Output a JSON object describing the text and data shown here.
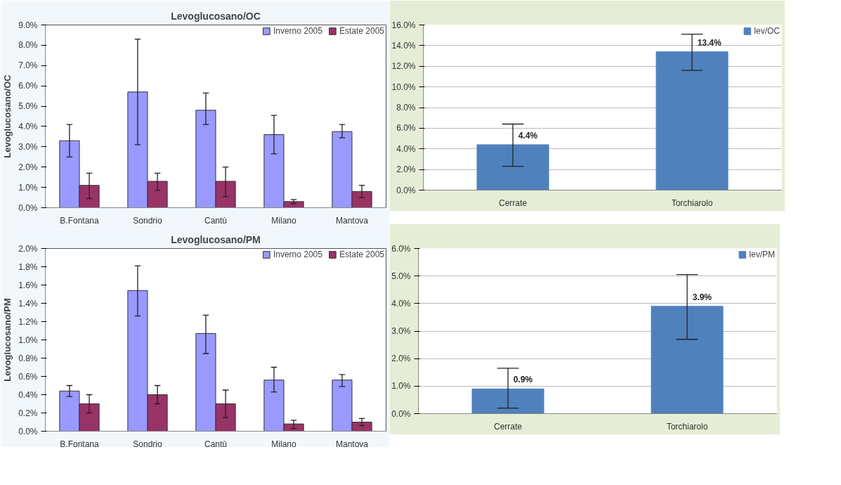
{
  "chart_data": [
    {
      "type": "bar",
      "title": "Levoglucosano/OC",
      "ylabel": "Levoglucosano/OC",
      "categories": [
        "B.Fontana",
        "Sondrio",
        "Cantù",
        "Milano",
        "Mantova"
      ],
      "legend": "top right",
      "grid": false,
      "series": [
        {
          "name": "Inverno 2005",
          "color": "#9999ff",
          "values": [
            3.3,
            5.7,
            4.8,
            3.6,
            3.75
          ],
          "errors": [
            [
              2.5,
              4.1
            ],
            [
              3.1,
              8.3
            ],
            [
              4.1,
              5.65
            ],
            [
              2.65,
              4.55
            ],
            [
              3.45,
              4.1
            ]
          ]
        },
        {
          "name": "Estate 2005",
          "color": "#993366",
          "values": [
            1.1,
            1.3,
            1.3,
            0.3,
            0.8
          ],
          "errors": [
            [
              0.45,
              1.7
            ],
            [
              0.85,
              1.7
            ],
            [
              0.55,
              2.0
            ],
            [
              0.2,
              0.4
            ],
            [
              0.5,
              1.1
            ]
          ]
        }
      ],
      "ylim": [
        0,
        9
      ],
      "yticks": [
        {
          "value": 0,
          "label": "0.0%"
        },
        {
          "value": 1,
          "label": "1.0%"
        },
        {
          "value": 2,
          "label": "2.0%"
        },
        {
          "value": 3,
          "label": "3.0%"
        },
        {
          "value": 4,
          "label": "4.0%"
        },
        {
          "value": 5,
          "label": "5.0%"
        },
        {
          "value": 6,
          "label": "6.0%"
        },
        {
          "value": 7,
          "label": "7.0%"
        },
        {
          "value": 8,
          "label": "8.0%"
        },
        {
          "value": 9,
          "label": "9.0%"
        }
      ]
    },
    {
      "type": "bar",
      "legend": "top right",
      "grid": "y",
      "categories": [
        "Cerrate",
        "Torchiarolo"
      ],
      "series": [
        {
          "name": "lev/OC",
          "color": "#4f81bd",
          "values": [
            4.4,
            13.4
          ],
          "errors": [
            [
              2.3,
              6.4
            ],
            [
              11.6,
              15.1
            ]
          ],
          "value_labels": [
            "4.4%",
            "13.4%"
          ]
        }
      ],
      "ylim": [
        0,
        16
      ],
      "yticks": [
        {
          "value": 0,
          "label": "0.0%"
        },
        {
          "value": 2,
          "label": "2.0%"
        },
        {
          "value": 4,
          "label": "4.0%"
        },
        {
          "value": 6,
          "label": "6.0%"
        },
        {
          "value": 8,
          "label": "8.0%"
        },
        {
          "value": 10,
          "label": "10.0%"
        },
        {
          "value": 12,
          "label": "12.0%"
        },
        {
          "value": 14,
          "label": "14.0%"
        },
        {
          "value": 16,
          "label": "16.0%"
        }
      ]
    },
    {
      "type": "bar",
      "title": "Levoglucosano/PM",
      "ylabel": "Levoglucosano/PM",
      "categories": [
        "B.Fontana",
        "Sondrio",
        "Cantù",
        "Milano",
        "Mantova"
      ],
      "legend": "top right",
      "grid": false,
      "series": [
        {
          "name": "Inverno 2005",
          "color": "#9999ff",
          "values": [
            0.44,
            1.54,
            1.07,
            0.56,
            0.56
          ],
          "errors": [
            [
              0.38,
              0.5
            ],
            [
              1.26,
              1.81
            ],
            [
              0.85,
              1.27
            ],
            [
              0.43,
              0.7
            ],
            [
              0.49,
              0.62
            ]
          ]
        },
        {
          "name": "Estate 2005",
          "color": "#993366",
          "values": [
            0.3,
            0.4,
            0.3,
            0.08,
            0.1
          ],
          "errors": [
            [
              0.2,
              0.4
            ],
            [
              0.3,
              0.5
            ],
            [
              0.15,
              0.45
            ],
            [
              0.03,
              0.12
            ],
            [
              0.06,
              0.14
            ]
          ]
        }
      ],
      "ylim": [
        0,
        2
      ],
      "yticks": [
        {
          "value": 0,
          "label": "0.0%"
        },
        {
          "value": 0.2,
          "label": "0.2%"
        },
        {
          "value": 0.4,
          "label": "0.4%"
        },
        {
          "value": 0.6,
          "label": "0.6%"
        },
        {
          "value": 0.8,
          "label": "0.8%"
        },
        {
          "value": 1.0,
          "label": "1.0%"
        },
        {
          "value": 1.2,
          "label": "1.2%"
        },
        {
          "value": 1.4,
          "label": "1.4%"
        },
        {
          "value": 1.6,
          "label": "1.6%"
        },
        {
          "value": 1.8,
          "label": "1.8%"
        },
        {
          "value": 2.0,
          "label": "2.0%"
        }
      ]
    },
    {
      "type": "bar",
      "legend": "top right",
      "grid": "y",
      "categories": [
        "Cerrate",
        "Torchiarolo"
      ],
      "series": [
        {
          "name": "lev/PM",
          "color": "#4f81bd",
          "values": [
            0.9,
            3.9
          ],
          "errors": [
            [
              0.2,
              1.65
            ],
            [
              2.7,
              5.05
            ]
          ],
          "value_labels": [
            "0.9%",
            "3.9%"
          ]
        }
      ],
      "ylim": [
        0,
        6
      ],
      "yticks": [
        {
          "value": 0,
          "label": "0.0%"
        },
        {
          "value": 1,
          "label": "1.0%"
        },
        {
          "value": 2,
          "label": "2.0%"
        },
        {
          "value": 3,
          "label": "3.0%"
        },
        {
          "value": 4,
          "label": "4.0%"
        },
        {
          "value": 5,
          "label": "5.0%"
        },
        {
          "value": 6,
          "label": "6.0%"
        }
      ]
    }
  ]
}
